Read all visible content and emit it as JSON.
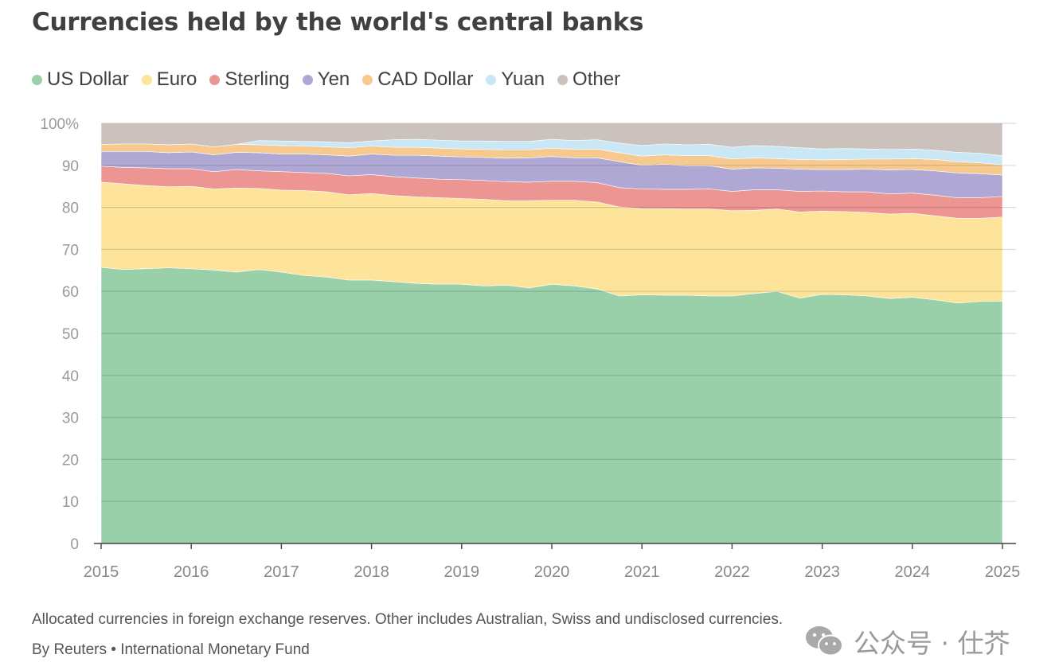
{
  "chart_data": {
    "type": "area",
    "title": "Currencies held by the world's central banks",
    "ylim": [
      0,
      100
    ],
    "y_ticks": [
      "0",
      "10",
      "20",
      "30",
      "40",
      "50",
      "60",
      "70",
      "80",
      "90",
      "100%"
    ],
    "y_tick_values": [
      0,
      10,
      20,
      30,
      40,
      50,
      60,
      70,
      80,
      90,
      100
    ],
    "x_ticks": [
      "2015",
      "2016",
      "2017",
      "2018",
      "2019",
      "2020",
      "2021",
      "2022",
      "2023",
      "2024",
      "2025"
    ],
    "x_tick_values": [
      2015,
      2016,
      2017,
      2018,
      2019,
      2020,
      2021,
      2022,
      2023,
      2024,
      2025
    ],
    "xlim": [
      2015,
      2025
    ],
    "x": [
      2015.0,
      2015.25,
      2015.5,
      2015.75,
      2016.0,
      2016.25,
      2016.5,
      2016.75,
      2017.0,
      2017.25,
      2017.5,
      2017.75,
      2018.0,
      2018.25,
      2018.5,
      2018.75,
      2019.0,
      2019.25,
      2019.5,
      2019.75,
      2020.0,
      2020.25,
      2020.5,
      2020.75,
      2021.0,
      2021.25,
      2021.5,
      2021.75,
      2022.0,
      2022.25,
      2022.5,
      2022.75,
      2023.0,
      2023.25,
      2023.5,
      2023.75,
      2024.0,
      2024.25,
      2024.5,
      2024.75,
      2025.0
    ],
    "series": [
      {
        "name": "US Dollar",
        "color": "#99cfa9",
        "values": [
          65.7,
          65.2,
          65.4,
          65.6,
          65.4,
          65.1,
          64.6,
          65.2,
          64.6,
          63.8,
          63.4,
          62.7,
          62.7,
          62.3,
          61.9,
          61.7,
          61.7,
          61.3,
          61.5,
          60.8,
          61.7,
          61.3,
          60.6,
          58.9,
          59.2,
          59.1,
          59.1,
          58.9,
          58.9,
          59.5,
          60.0,
          58.4,
          59.3,
          59.2,
          58.9,
          58.3,
          58.6,
          58.0,
          57.2,
          57.6,
          57.7
        ]
      },
      {
        "name": "Euro",
        "color": "#fee39a",
        "values": [
          20.3,
          20.4,
          19.8,
          19.3,
          19.6,
          19.3,
          20.0,
          19.3,
          19.5,
          20.2,
          20.3,
          20.3,
          20.6,
          20.5,
          20.6,
          20.6,
          20.4,
          20.6,
          20.1,
          20.8,
          20.0,
          20.4,
          20.7,
          21.2,
          20.5,
          20.6,
          20.5,
          20.7,
          20.3,
          19.8,
          19.6,
          20.5,
          19.8,
          19.8,
          19.9,
          20.1,
          20.0,
          20.0,
          20.2,
          19.8,
          20.0
        ]
      },
      {
        "name": "Sterling",
        "color": "#ec9593",
        "values": [
          3.8,
          3.9,
          4.2,
          4.3,
          4.2,
          4.1,
          4.4,
          4.2,
          4.4,
          4.3,
          4.4,
          4.5,
          4.5,
          4.5,
          4.5,
          4.4,
          4.5,
          4.5,
          4.5,
          4.4,
          4.5,
          4.5,
          4.6,
          4.6,
          4.7,
          4.6,
          4.7,
          4.8,
          4.6,
          4.9,
          4.6,
          4.9,
          4.8,
          4.7,
          4.9,
          4.8,
          4.8,
          4.9,
          4.9,
          4.9,
          4.9
        ]
      },
      {
        "name": "Yen",
        "color": "#b0a8d4",
        "values": [
          3.5,
          3.8,
          3.9,
          3.8,
          4.0,
          4.0,
          4.1,
          4.3,
          4.2,
          4.4,
          4.4,
          4.7,
          4.9,
          5.1,
          5.4,
          5.5,
          5.4,
          5.5,
          5.6,
          5.8,
          5.9,
          5.6,
          5.9,
          6.2,
          5.6,
          5.9,
          5.6,
          5.5,
          5.3,
          5.2,
          5.1,
          5.3,
          5.1,
          5.3,
          5.4,
          5.7,
          5.6,
          5.8,
          5.9,
          5.7,
          5.1
        ]
      },
      {
        "name": "CAD Dollar",
        "color": "#f6c98f",
        "values": [
          1.7,
          1.8,
          1.8,
          1.9,
          1.9,
          1.9,
          1.9,
          1.9,
          2.0,
          1.9,
          1.9,
          2.0,
          1.9,
          1.9,
          1.9,
          1.9,
          1.9,
          1.9,
          2.0,
          1.9,
          2.0,
          2.0,
          2.1,
          2.1,
          2.2,
          2.3,
          2.4,
          2.4,
          2.4,
          2.4,
          2.3,
          2.3,
          2.3,
          2.4,
          2.4,
          2.6,
          2.6,
          2.7,
          2.7,
          2.6,
          2.4
        ]
      },
      {
        "name": "Yuan",
        "color": "#c9e7f5",
        "values": [
          0.0,
          0.0,
          0.0,
          0.0,
          0.0,
          0.0,
          0.0,
          1.0,
          1.1,
          1.1,
          1.2,
          1.2,
          1.2,
          1.8,
          1.9,
          1.9,
          1.9,
          2.0,
          2.0,
          2.0,
          2.1,
          2.1,
          2.2,
          2.3,
          2.5,
          2.6,
          2.6,
          2.7,
          2.8,
          2.9,
          2.9,
          2.8,
          2.6,
          2.6,
          2.4,
          2.3,
          2.3,
          2.2,
          2.2,
          2.3,
          2.2
        ]
      },
      {
        "name": "Other",
        "color": "#cbc2bd",
        "values": [
          5.0,
          4.9,
          4.9,
          5.1,
          4.9,
          5.6,
          5.0,
          4.1,
          4.2,
          4.3,
          4.4,
          4.6,
          4.2,
          3.9,
          3.8,
          4.0,
          4.2,
          4.2,
          4.3,
          4.3,
          3.8,
          4.1,
          3.9,
          4.7,
          5.3,
          4.9,
          5.1,
          5.0,
          5.7,
          5.3,
          5.5,
          5.8,
          6.1,
          6.0,
          6.1,
          6.2,
          6.1,
          6.4,
          6.9,
          7.1,
          7.7
        ]
      }
    ],
    "legend_position": "top-left",
    "grid": true,
    "footnote": "Allocated currencies in foreign exchange reserves. Other includes Australian, Swiss and undisclosed currencies.",
    "source": "By Reuters • International Monetary Fund"
  },
  "watermark": {
    "icon": "wechat-icon",
    "text": "公众号 · 仕芥"
  }
}
